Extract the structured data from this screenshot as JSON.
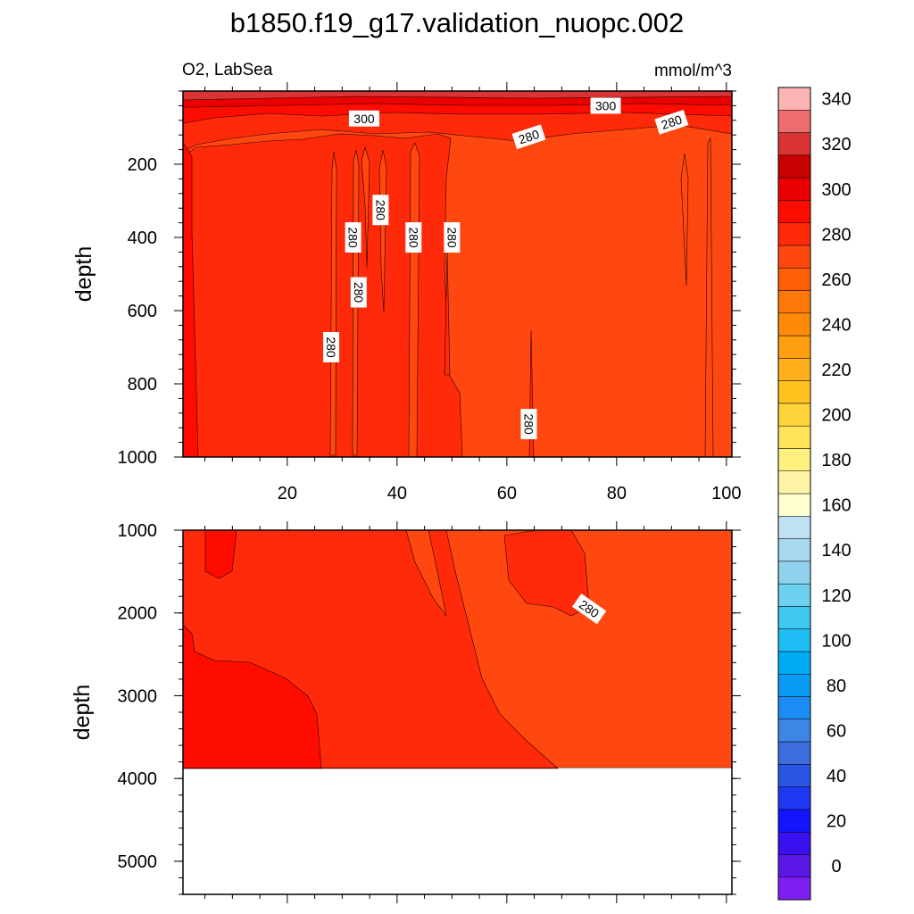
{
  "chart_data": {
    "type": "heatmap",
    "title": "b1850.f19_g17.validation_nuopc.002",
    "variable": "O2, LabSea",
    "units": "mmol/m^3",
    "x_axis": {
      "range": [
        1,
        101
      ],
      "ticks": [
        20,
        40,
        60,
        80,
        100
      ],
      "label": ""
    },
    "panels": [
      {
        "name": "upper",
        "ylabel": "depth",
        "y_range": [
          0,
          1000
        ],
        "y_ticks": [
          200,
          400,
          600,
          800,
          1000
        ],
        "contour_labels": [
          {
            "text": "300",
            "x": 34,
            "depth": 75
          },
          {
            "text": "300",
            "x": 78,
            "depth": 40
          },
          {
            "text": "280",
            "x": 90,
            "depth": 85
          },
          {
            "text": "280",
            "x": 64,
            "depth": 125
          },
          {
            "text": "280",
            "x": 37,
            "depth": 325
          },
          {
            "text": "280",
            "x": 32,
            "depth": 400
          },
          {
            "text": "280",
            "x": 43,
            "depth": 400
          },
          {
            "text": "280",
            "x": 50,
            "depth": 400
          },
          {
            "text": "280",
            "x": 33,
            "depth": 550
          },
          {
            "text": "280",
            "x": 28,
            "depth": 700
          },
          {
            "text": "280",
            "x": 64,
            "depth": 910
          }
        ]
      },
      {
        "name": "lower",
        "ylabel": "depth",
        "y_range": [
          1000,
          5400
        ],
        "y_ticks": [
          1000,
          2000,
          3000,
          4000,
          5000
        ],
        "bottom_depth": 3870,
        "contour_labels": [
          {
            "text": "280",
            "x": 75,
            "depth": 1950
          }
        ]
      }
    ],
    "colorbar": {
      "labels": [
        "340",
        "320",
        "300",
        "280",
        "260",
        "240",
        "220",
        "200",
        "180",
        "160",
        "140",
        "120",
        "100",
        "80",
        "60",
        "40",
        "20",
        "0"
      ],
      "level_min": -10,
      "level_max": 350,
      "level_step": 10,
      "colors": [
        "#7d1ff0",
        "#5a17e6",
        "#3a10ee",
        "#1414ff",
        "#1e37f0",
        "#2a55e4",
        "#3b6ddc",
        "#3d86e6",
        "#1a8cf4",
        "#0a9cf5",
        "#00adf5",
        "#1ebef4",
        "#40c8f0",
        "#6cd0f0",
        "#90d2ee",
        "#a8d8ef",
        "#c0e2f3",
        "#ffffd0",
        "#fff5a8",
        "#fff080",
        "#ffe45a",
        "#ffd33a",
        "#ffc21e",
        "#ffb01a",
        "#ff9e10",
        "#ff8a08",
        "#ff7808",
        "#ff6005",
        "#ff4810",
        "#ff2a0a",
        "#ff0c00",
        "#ea0000",
        "#c80000",
        "#da3434",
        "#ec6e6e",
        "#fcb4b4"
      ]
    }
  },
  "colors": {
    "frame": "#000000",
    "contour_line": "#2a0000",
    "label_box": "#ffffff"
  }
}
